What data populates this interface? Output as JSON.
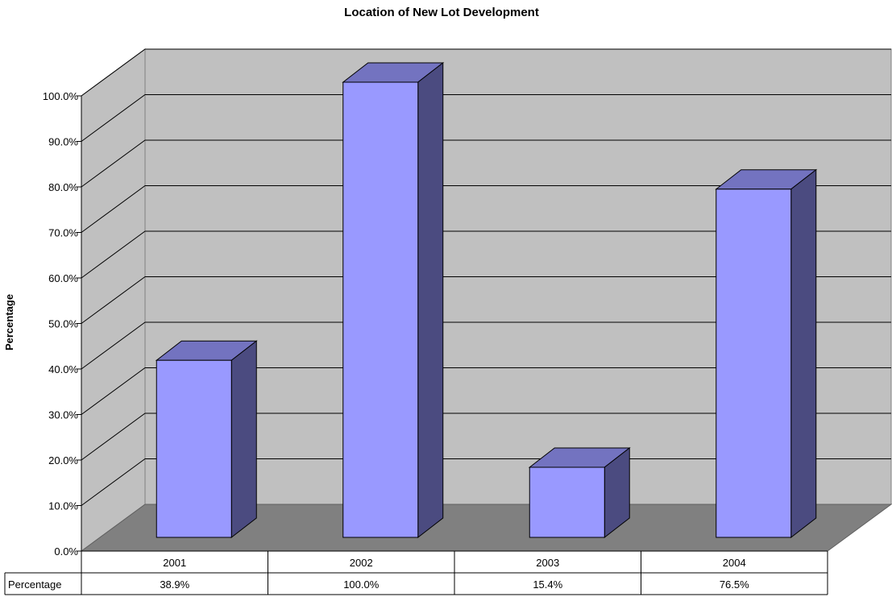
{
  "chart_data": {
    "type": "bar",
    "title": "Location of New Lot Development",
    "ylabel": "Percentage",
    "xlabel": "",
    "categories": [
      "2001",
      "2002",
      "2003",
      "2004"
    ],
    "series": [
      {
        "name": "Percentage",
        "values": [
          38.9,
          100.0,
          15.4,
          76.5
        ]
      }
    ],
    "data_labels": [
      "38.9%",
      "100.0%",
      "15.4%",
      "76.5%"
    ],
    "ylim": [
      0,
      100
    ],
    "yticks": [
      "0.0%",
      "10.0%",
      "20.0%",
      "30.0%",
      "40.0%",
      "50.0%",
      "60.0%",
      "70.0%",
      "80.0%",
      "90.0%",
      "100.0%"
    ],
    "grid": true,
    "legend": "none",
    "data_table": true,
    "style": "3d-column",
    "colors": {
      "bar_front": "#9999ff",
      "bar_side": "#4b4b80",
      "bar_top": "#7373c0",
      "back_wall": "#c0c0c0",
      "side_wall": "#c0c0c0",
      "floor": "#808080",
      "grid": "#000000"
    }
  }
}
